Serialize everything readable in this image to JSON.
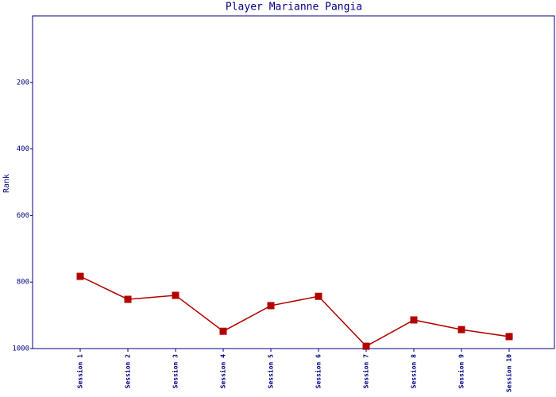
{
  "chart_data": {
    "type": "line",
    "title": "Player Marianne Pangia",
    "y_label": "Rank",
    "categories": [
      "Session 1",
      "Session 2",
      "Session 3",
      "Session 4",
      "Session 5",
      "Session 6",
      "Session 7",
      "Session 8",
      "Session 9",
      "Session 10"
    ],
    "values": [
      783,
      852,
      840,
      948,
      871,
      843,
      993,
      914,
      943,
      964
    ],
    "color": "#b30000",
    "ylim": [
      1000,
      0
    ],
    "yticks": [
      200,
      400,
      600,
      800,
      1000
    ],
    "grid": false
  }
}
